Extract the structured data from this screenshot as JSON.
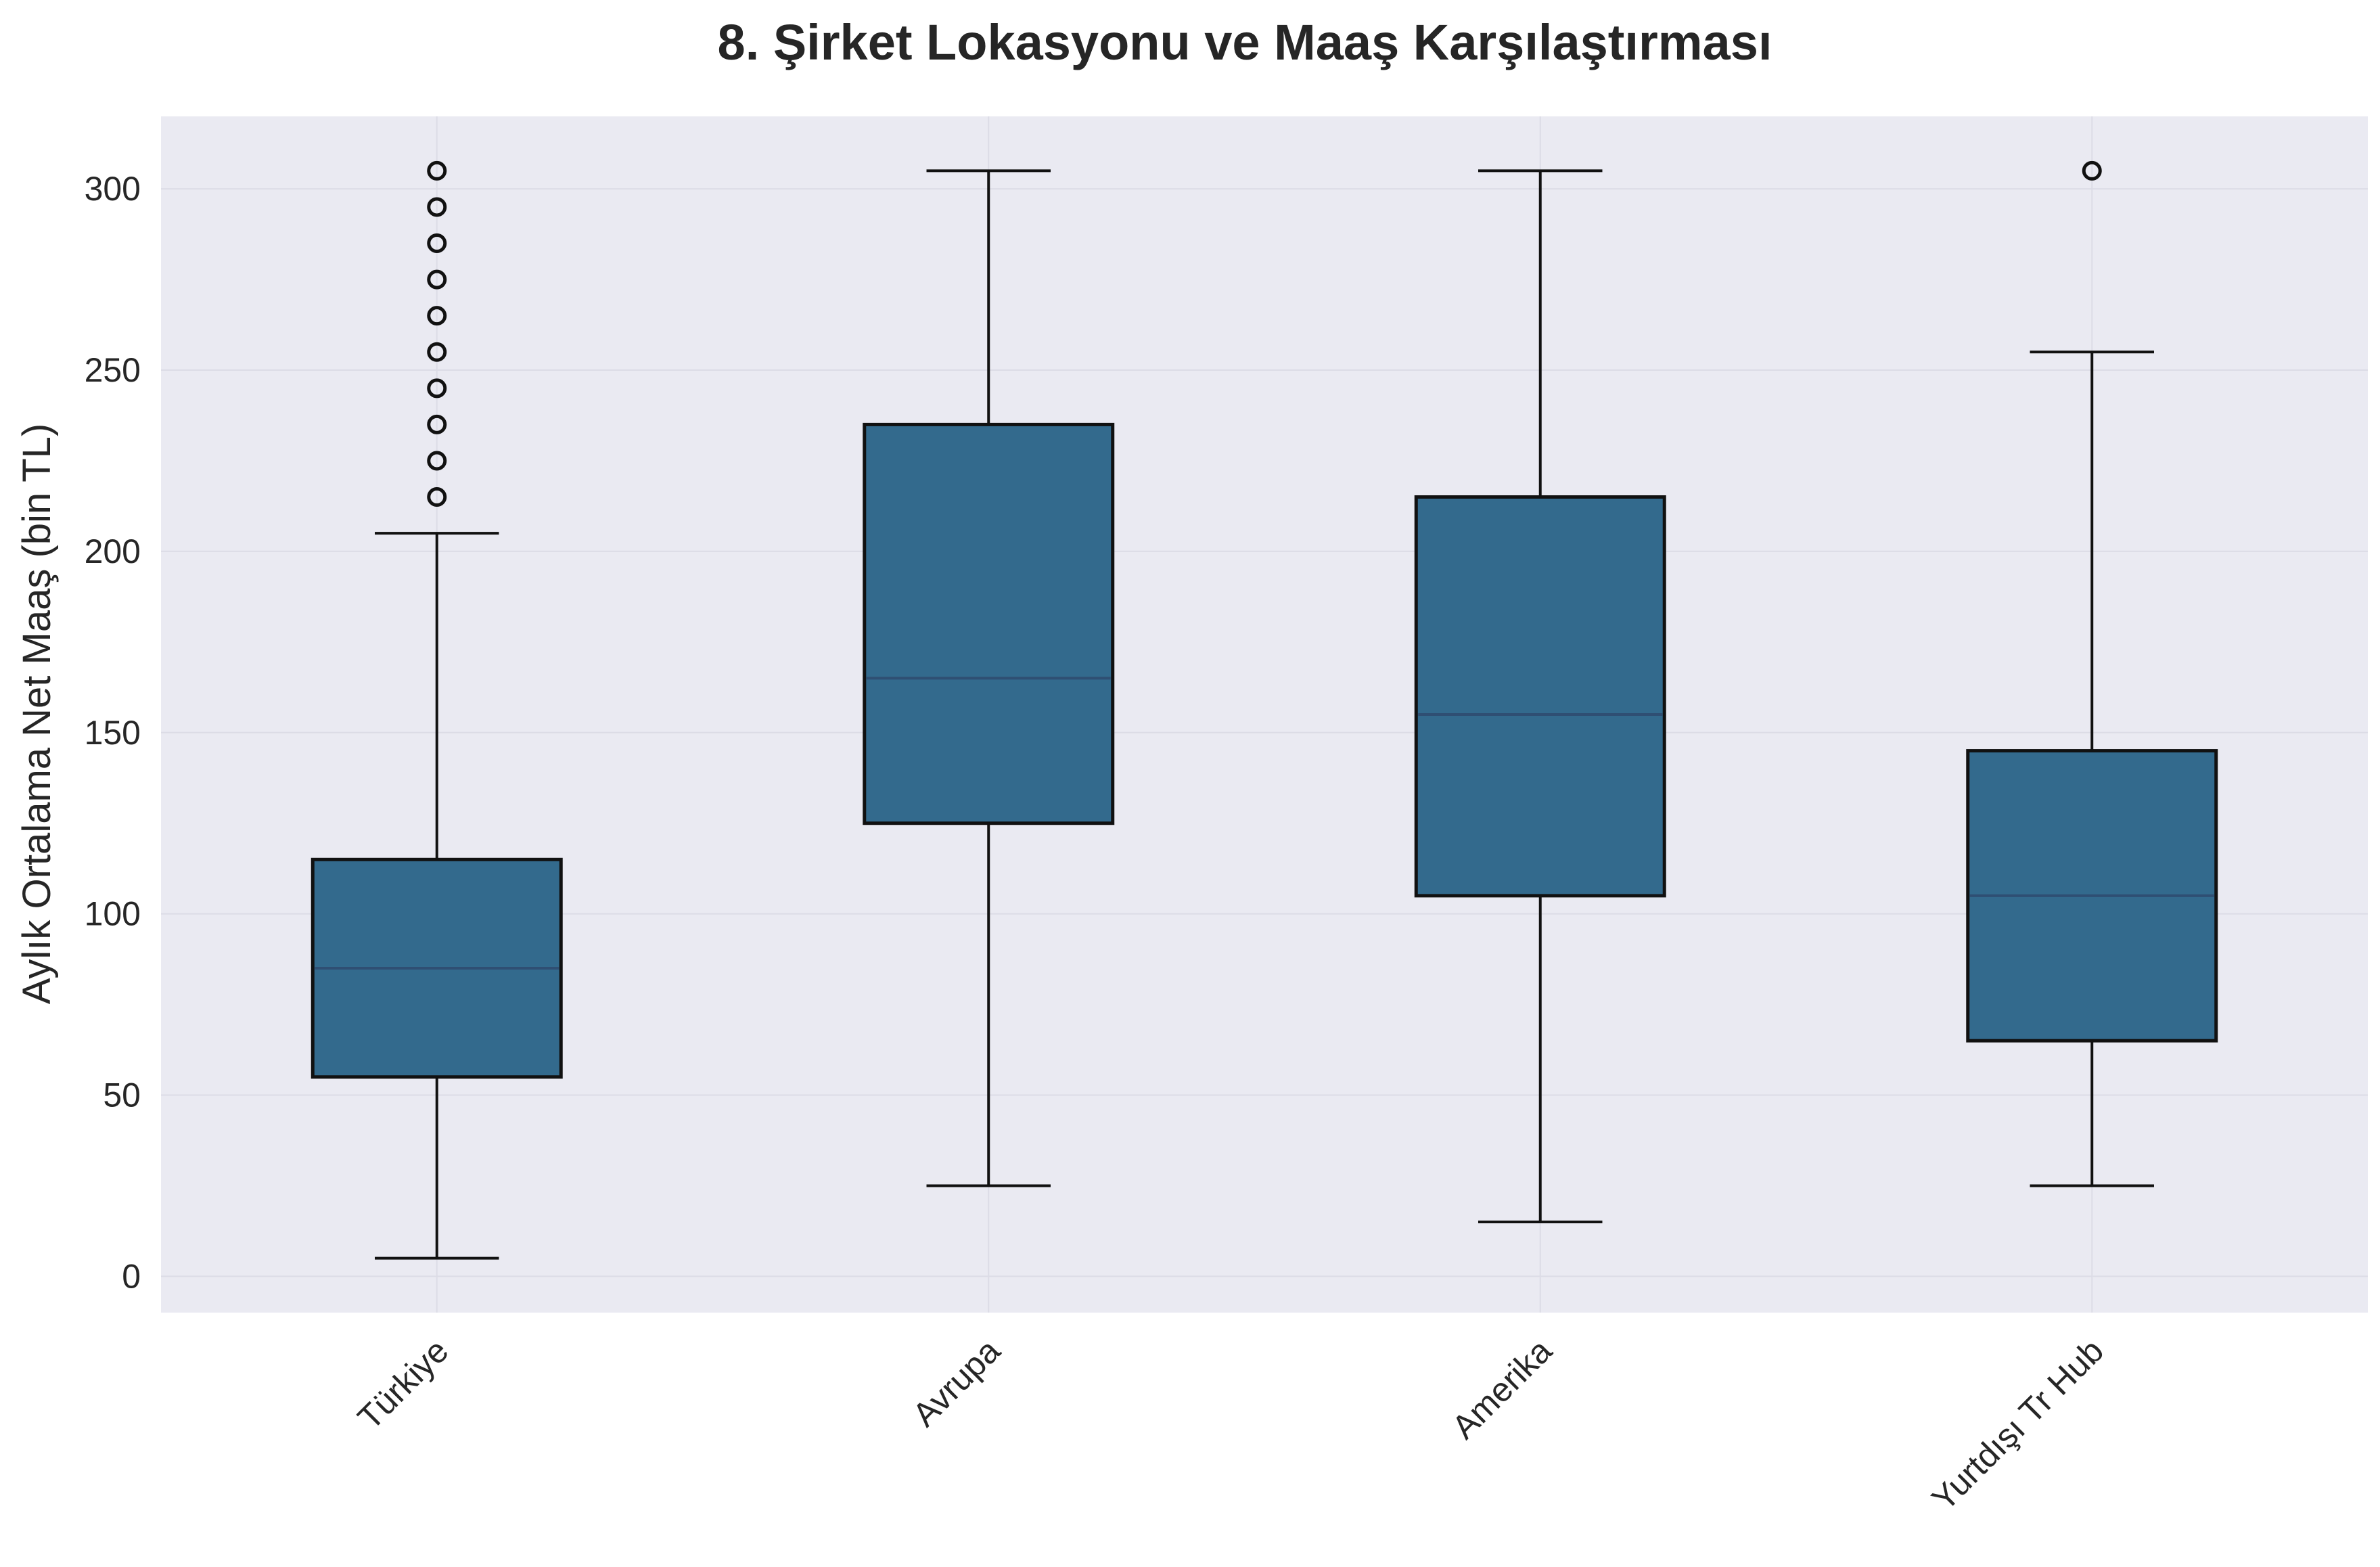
{
  "chart_data": {
    "type": "box",
    "title": "8. Şirket Lokasyonu ve Maaş Karşılaştırması",
    "xlabel": "",
    "ylabel": "Aylık Ortalama Net Maaş (bin TL)",
    "ylim": [
      -10,
      320
    ],
    "yticks": [
      0,
      50,
      100,
      150,
      200,
      250,
      300
    ],
    "grid": true,
    "categories": [
      "Türkiye",
      "Avrupa",
      "Amerika",
      "Yurtdışı Tr Hub"
    ],
    "boxes": [
      {
        "whislo": 5,
        "q1": 55,
        "median": 85,
        "q3": 115,
        "whishi": 205,
        "fliers": [
          215,
          225,
          235,
          245,
          255,
          265,
          275,
          285,
          295,
          305
        ]
      },
      {
        "whislo": 25,
        "q1": 125,
        "median": 165,
        "q3": 235,
        "whishi": 305,
        "fliers": []
      },
      {
        "whislo": 15,
        "q1": 105,
        "median": 155,
        "q3": 215,
        "whishi": 305,
        "fliers": []
      },
      {
        "whislo": 25,
        "q1": 65,
        "median": 105,
        "q3": 145,
        "whishi": 255,
        "fliers": [
          305
        ]
      }
    ],
    "colors": {
      "box_fill": "#336a8d",
      "box_edge": "#111111",
      "median": "#2f4f73",
      "plot_bg": "#eaeaf2",
      "grid": "#dcdce6",
      "text": "#262626"
    }
  }
}
